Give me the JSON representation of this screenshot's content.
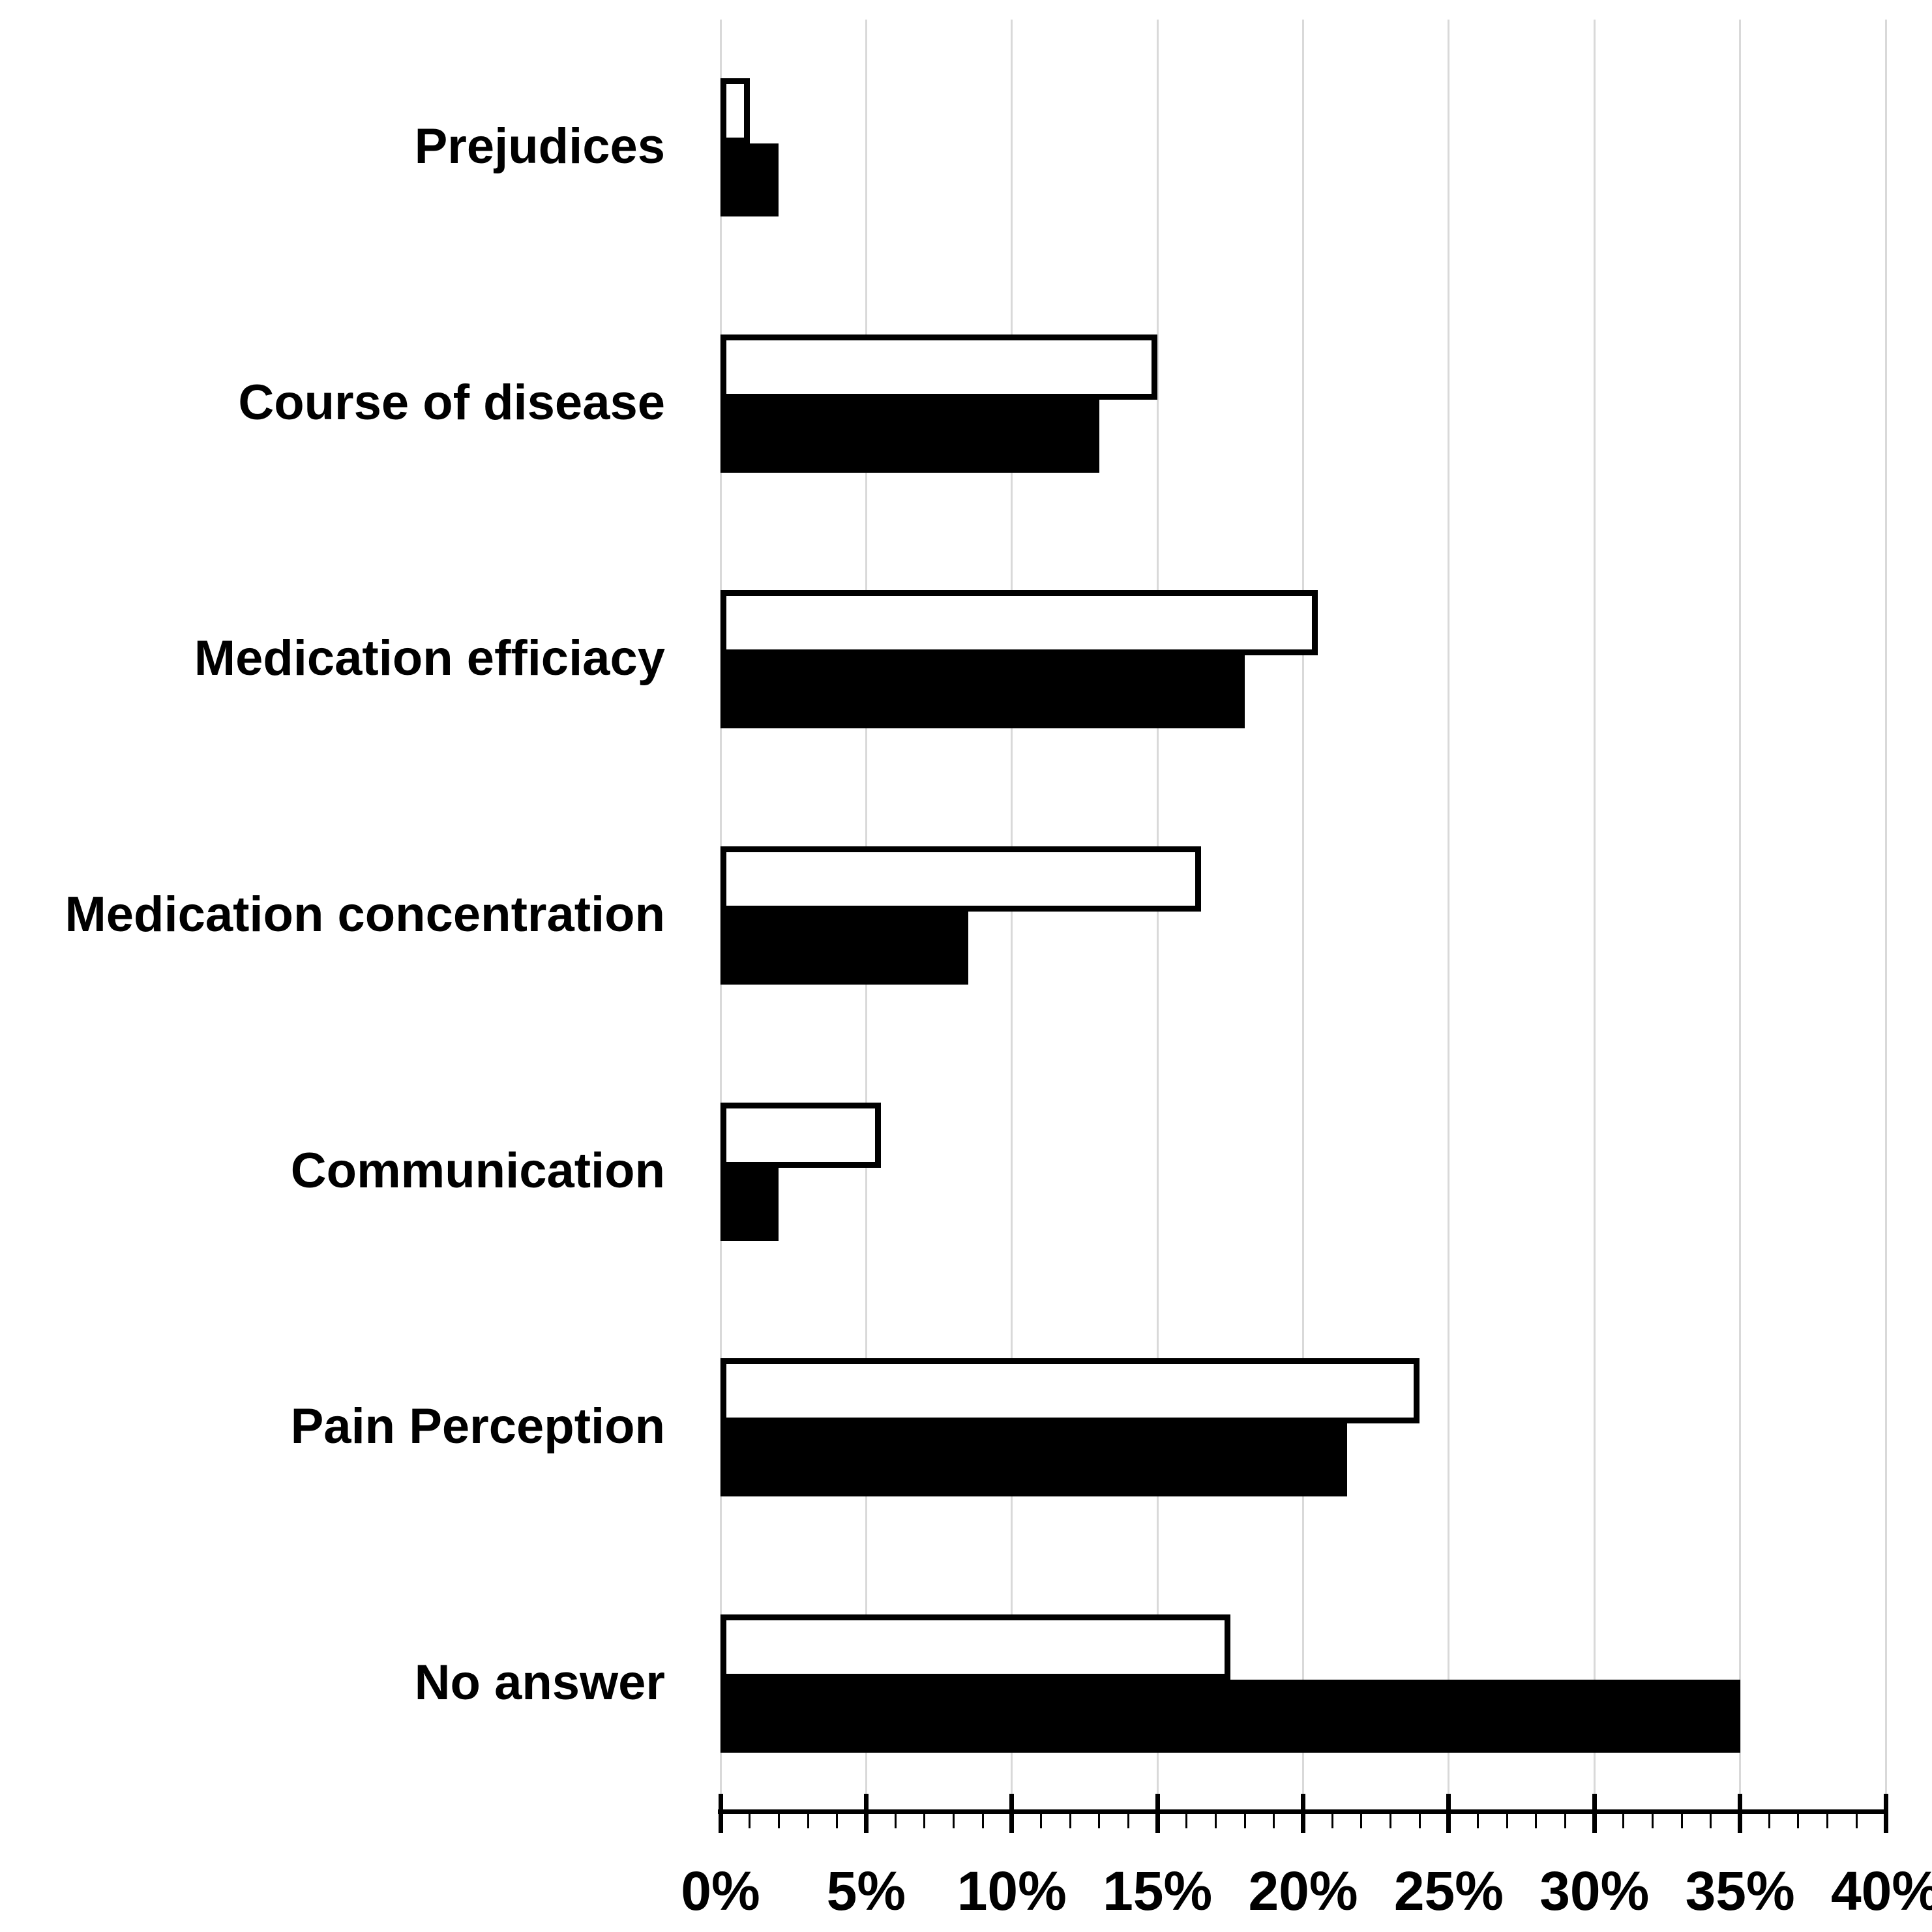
{
  "chart_data": {
    "type": "bar",
    "orientation": "horizontal",
    "title": "",
    "xlabel": "",
    "ylabel": "",
    "categories": [
      "Prejudices",
      "Course of disease",
      "Medication efficiacy",
      "Medication concentration",
      "Communication",
      "Pain Perception",
      "No answer"
    ],
    "series": [
      {
        "name": "white-outlined-bar",
        "fill": "#ffffff",
        "stroke": "#000000",
        "values": [
          1,
          15,
          20.5,
          16.5,
          5.5,
          24,
          17.5
        ]
      },
      {
        "name": "black-solid-bar",
        "fill": "#000000",
        "stroke": "#000000",
        "values": [
          2,
          13,
          18,
          8.5,
          2,
          21.5,
          35
        ]
      }
    ],
    "x_axis": {
      "min": 0,
      "max": 40,
      "unit": "%",
      "major_step": 5,
      "minor_step": 1,
      "tick_labels": [
        "0%",
        "5%",
        "10%",
        "15%",
        "20%",
        "25%",
        "30%",
        "35%",
        "40%"
      ]
    },
    "grid": {
      "vertical_major": true,
      "color": "#d9d9d9"
    },
    "legend": "none",
    "axis_color": "#000000",
    "background": "#ffffff"
  }
}
